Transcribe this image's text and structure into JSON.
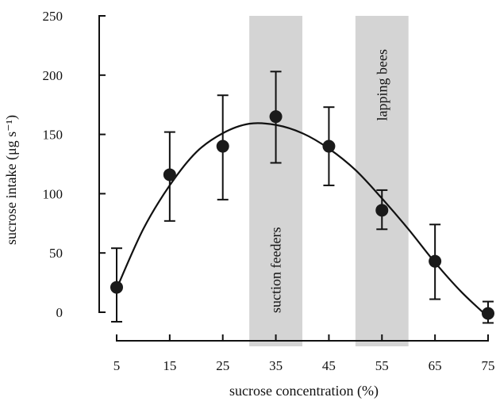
{
  "chart_data": {
    "type": "scatter",
    "title": "",
    "xlabel": "sucrose concentration (%)",
    "ylabel": "sucrose intake (μg s⁻¹)",
    "x_ticks": [
      5,
      15,
      25,
      35,
      45,
      55,
      65,
      75
    ],
    "y_ticks": [
      0,
      50,
      100,
      150,
      200,
      250
    ],
    "xlim": [
      5,
      75
    ],
    "ylim": [
      0,
      250
    ],
    "grid": false,
    "series": [
      {
        "x": [
          5,
          15,
          25,
          35,
          45,
          55,
          65,
          75
        ],
        "values": [
          21,
          116,
          140,
          165,
          140,
          86,
          43,
          -1
        ],
        "error_upper": [
          54,
          152,
          183,
          203,
          173,
          103,
          74,
          9
        ],
        "error_lower": [
          -8,
          77,
          95,
          126,
          107,
          70,
          11,
          -9
        ],
        "color": "#1a1a1a"
      }
    ],
    "fit_curve": {
      "x": [
        5,
        10,
        15,
        20,
        25,
        30,
        35,
        40,
        45,
        50,
        55,
        60,
        65,
        70,
        75
      ],
      "values": [
        20,
        70,
        107,
        135,
        151,
        159,
        158,
        151,
        138,
        120,
        96,
        70,
        42,
        17,
        -4
      ]
    },
    "bands": [
      {
        "label": "suction feeders",
        "from": 30,
        "to": 40,
        "color": "#d4d4d4"
      },
      {
        "label": "lapping bees",
        "from": 50,
        "to": 60,
        "color": "#d4d4d4"
      }
    ]
  }
}
